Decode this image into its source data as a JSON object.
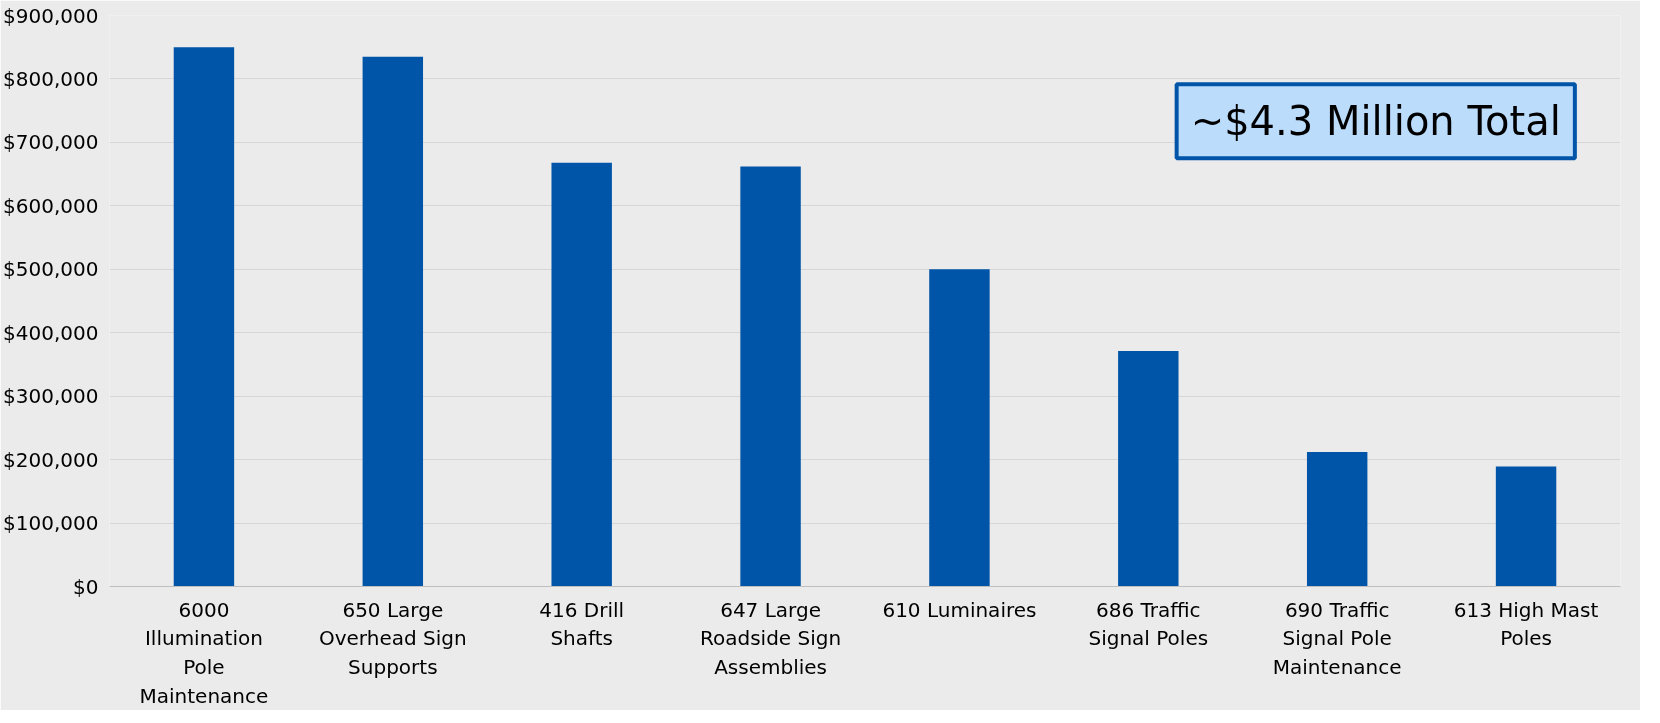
{
  "chart_data": {
    "type": "bar",
    "categories": [
      "6000 Illumination Pole Maintenance",
      "650 Large Overhead Sign Supports",
      "416 Drill Shafts",
      "647 Large Roadside Sign Assemblies",
      "610 Luminaires",
      "686 Traffic Signal Poles",
      "690 Traffic Signal Pole Maintenance",
      "613 High Mast Poles"
    ],
    "values": [
      850000,
      835000,
      668000,
      662000,
      500000,
      371000,
      212000,
      189000
    ],
    "color": "#0055a8",
    "ylim": [
      0,
      900000
    ],
    "yticks": [
      {
        "value": 0,
        "label": "$0"
      },
      {
        "value": 100000,
        "label": "$100,000"
      },
      {
        "value": 200000,
        "label": "$200,000"
      },
      {
        "value": 300000,
        "label": "$300,000"
      },
      {
        "value": 400000,
        "label": "$400,000"
      },
      {
        "value": 500000,
        "label": "$500,000"
      },
      {
        "value": 600000,
        "label": "$600,000"
      },
      {
        "value": 700000,
        "label": "$700,000"
      },
      {
        "value": 800000,
        "label": "$800,000"
      },
      {
        "value": 900000,
        "label": "$900,000"
      }
    ],
    "grid": "y",
    "annotations": [
      "~$4.3 Million Total"
    ]
  }
}
